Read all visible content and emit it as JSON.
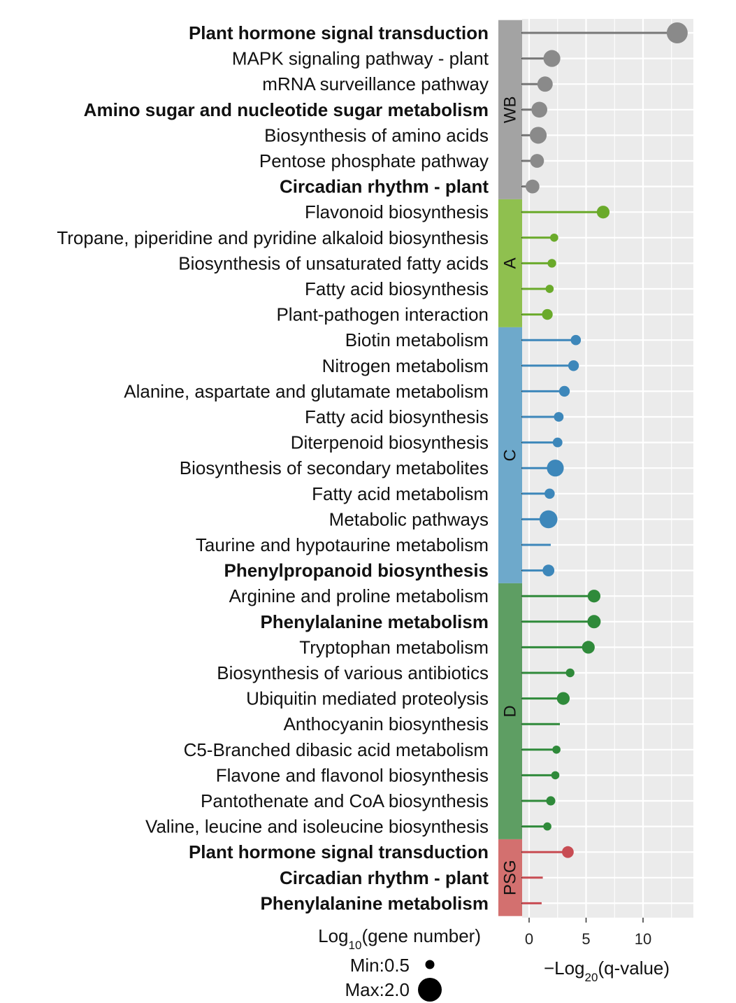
{
  "chart_data": {
    "type": "lollipop",
    "xlabel": "−Log",
    "xlabel_sub": "20",
    "xlabel_suffix": "(q-value)",
    "xlim": [
      -2,
      14
    ],
    "xticks": [
      0,
      5,
      10
    ],
    "grid": true,
    "size_legend": {
      "title": "Log",
      "title_sub": "10",
      "title_suffix": "(gene number)",
      "min_label": "Min:0.5",
      "max_label": "Max:2.0",
      "min_value": 0.5,
      "max_value": 2.0
    },
    "groups": [
      {
        "name": "WB",
        "color": "#a3a3a3",
        "dot_color": "#8a8a8a",
        "line_color": "#777777",
        "items": [
          {
            "label": "Plant hormone signal transduction",
            "bold": true,
            "value": 13.0,
            "size": 2.0
          },
          {
            "label": "MAPK signaling pathway - plant",
            "bold": false,
            "value": 2.0,
            "size": 1.6
          },
          {
            "label": "mRNA surveillance pathway",
            "bold": false,
            "value": 1.4,
            "size": 1.45
          },
          {
            "label": "Amino sugar and nucleotide sugar metabolism",
            "bold": true,
            "value": 0.9,
            "size": 1.5
          },
          {
            "label": "Biosynthesis of amino acids",
            "bold": false,
            "value": 0.8,
            "size": 1.6
          },
          {
            "label": "Pentose phosphate pathway",
            "bold": false,
            "value": 0.7,
            "size": 1.3
          },
          {
            "label": "Circadian rhythm - plant",
            "bold": true,
            "value": 0.3,
            "size": 1.3
          }
        ]
      },
      {
        "name": "A",
        "color": "#8fc04f",
        "dot_color": "#6aaa2a",
        "line_color": "#6aaa2a",
        "items": [
          {
            "label": "Flavonoid biosynthesis",
            "bold": false,
            "value": 6.5,
            "size": 1.2
          },
          {
            "label": "Tropane, piperidine and pyridine alkaloid biosynthesis",
            "bold": false,
            "value": 2.2,
            "size": 0.75
          },
          {
            "label": "Biosynthesis of unsaturated fatty acids",
            "bold": false,
            "value": 2.0,
            "size": 0.8
          },
          {
            "label": "Fatty acid biosynthesis",
            "bold": false,
            "value": 1.8,
            "size": 0.75
          },
          {
            "label": "Plant-pathogen interaction",
            "bold": false,
            "value": 1.6,
            "size": 1.0
          }
        ]
      },
      {
        "name": "C",
        "color": "#6ea9cb",
        "dot_color": "#3d87ba",
        "line_color": "#3d87ba",
        "items": [
          {
            "label": "Biotin metabolism",
            "bold": false,
            "value": 4.1,
            "size": 0.95
          },
          {
            "label": "Nitrogen metabolism",
            "bold": false,
            "value": 3.9,
            "size": 1.0
          },
          {
            "label": "Alanine, aspartate and glutamate metabolism",
            "bold": false,
            "value": 3.1,
            "size": 1.0
          },
          {
            "label": "Fatty acid biosynthesis",
            "bold": false,
            "value": 2.6,
            "size": 0.9
          },
          {
            "label": "Diterpenoid biosynthesis",
            "bold": false,
            "value": 2.5,
            "size": 0.9
          },
          {
            "label": "Biosynthesis of secondary metabolites",
            "bold": false,
            "value": 2.3,
            "size": 1.6
          },
          {
            "label": "Fatty acid metabolism",
            "bold": false,
            "value": 1.8,
            "size": 0.95
          },
          {
            "label": "Metabolic pathways",
            "bold": false,
            "value": 1.7,
            "size": 1.7
          },
          {
            "label": "Taurine and hypotaurine metabolism",
            "bold": false,
            "value": 1.9,
            "size": 0.0
          },
          {
            "label": "Phenylpropanoid biosynthesis",
            "bold": true,
            "value": 1.7,
            "size": 1.1
          }
        ]
      },
      {
        "name": "D",
        "color": "#5e9e63",
        "dot_color": "#2f8a3a",
        "line_color": "#2f8a3a",
        "items": [
          {
            "label": "Arginine and proline metabolism",
            "bold": false,
            "value": 5.7,
            "size": 1.2
          },
          {
            "label": "Phenylalanine metabolism",
            "bold": true,
            "value": 5.7,
            "size": 1.25
          },
          {
            "label": "Tryptophan metabolism",
            "bold": false,
            "value": 5.2,
            "size": 1.2
          },
          {
            "label": "Biosynthesis of various antibiotics",
            "bold": false,
            "value": 3.6,
            "size": 0.8
          },
          {
            "label": "Ubiquitin mediated proteolysis",
            "bold": false,
            "value": 3.0,
            "size": 1.2
          },
          {
            "label": "Anthocyanin biosynthesis",
            "bold": false,
            "value": 2.7,
            "size": 0.0
          },
          {
            "label": "C5-Branched dibasic acid metabolism",
            "bold": false,
            "value": 2.4,
            "size": 0.75
          },
          {
            "label": "Flavone and flavonol biosynthesis",
            "bold": false,
            "value": 2.3,
            "size": 0.75
          },
          {
            "label": "Pantothenate and CoA biosynthesis",
            "bold": false,
            "value": 1.9,
            "size": 0.85
          },
          {
            "label": "Valine, leucine and isoleucine biosynthesis",
            "bold": false,
            "value": 1.6,
            "size": 0.75
          }
        ]
      },
      {
        "name": "PSG",
        "color": "#d3706f",
        "dot_color": "#c84c53",
        "line_color": "#c84c53",
        "items": [
          {
            "label": "Plant hormone signal transduction",
            "bold": true,
            "value": 3.4,
            "size": 1.1
          },
          {
            "label": "Circadian rhythm - plant",
            "bold": true,
            "value": 1.2,
            "size": 0.0
          },
          {
            "label": "Phenylalanine metabolism",
            "bold": true,
            "value": 1.1,
            "size": 0.0
          }
        ]
      }
    ]
  }
}
